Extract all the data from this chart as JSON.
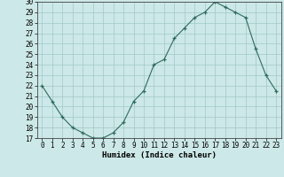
{
  "x": [
    0,
    1,
    2,
    3,
    4,
    5,
    6,
    7,
    8,
    9,
    10,
    11,
    12,
    13,
    14,
    15,
    16,
    17,
    18,
    19,
    20,
    21,
    22,
    23
  ],
  "y": [
    22,
    20.5,
    19,
    18,
    17.5,
    17,
    17,
    17.5,
    18.5,
    20.5,
    21.5,
    24,
    24.5,
    26.5,
    27.5,
    28.5,
    29,
    30,
    29.5,
    29,
    28.5,
    25.5,
    23,
    21.5
  ],
  "xlabel": "Humidex (Indice chaleur)",
  "xlim": [
    -0.5,
    23.5
  ],
  "ylim": [
    17,
    30
  ],
  "yticks": [
    17,
    18,
    19,
    20,
    21,
    22,
    23,
    24,
    25,
    26,
    27,
    28,
    29,
    30
  ],
  "xticks": [
    0,
    1,
    2,
    3,
    4,
    5,
    6,
    7,
    8,
    9,
    10,
    11,
    12,
    13,
    14,
    15,
    16,
    17,
    18,
    19,
    20,
    21,
    22,
    23
  ],
  "line_color": "#2e6b5e",
  "marker": "+",
  "bg_color": "#cde8e8",
  "grid_color": "#a0c8c8",
  "label_fontsize": 6.5,
  "tick_fontsize": 5.5
}
